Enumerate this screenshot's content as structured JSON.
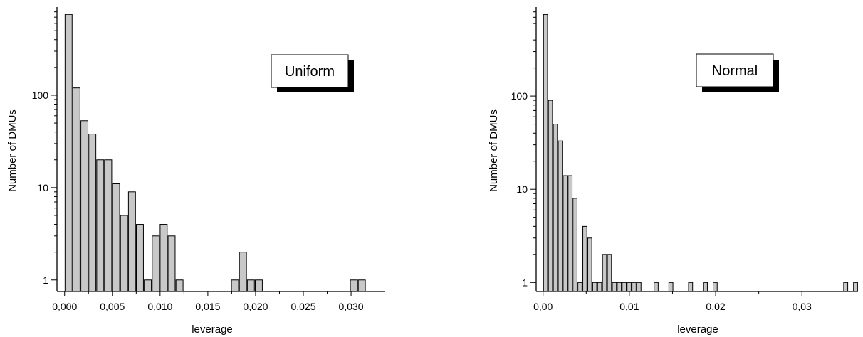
{
  "chart_data": [
    {
      "type": "bar",
      "title": "",
      "xlabel": "leverage",
      "ylabel": "Number of DMUs",
      "y_scale": "log",
      "ylim": [
        0.75,
        900
      ],
      "xlim": [
        -0.0008,
        0.0335
      ],
      "x_ticks": [
        "0,000",
        "0,005",
        "0,010",
        "0,015",
        "0,020",
        "0,025",
        "0,030"
      ],
      "x_tick_values": [
        0.0,
        0.005,
        0.01,
        0.015,
        0.02,
        0.025,
        0.03
      ],
      "y_ticks": [
        "1",
        "10",
        "100"
      ],
      "y_tick_values": [
        1,
        10,
        100
      ],
      "bin_width": 0.00083,
      "x": [
        0.0,
        0.00083,
        0.00166,
        0.00249,
        0.00332,
        0.00415,
        0.00498,
        0.00581,
        0.00664,
        0.00747,
        0.0083,
        0.00913,
        0.00996,
        0.01079,
        0.01162,
        0.01743,
        0.01826,
        0.01909,
        0.01992,
        0.02988,
        0.03071
      ],
      "values": [
        750,
        120,
        53,
        38,
        20,
        20,
        11,
        5,
        9,
        4,
        1,
        3,
        4,
        3,
        1,
        1,
        2,
        1,
        1,
        1,
        1
      ],
      "legend": {
        "label": "Uniform",
        "placement": "top-right"
      }
    },
    {
      "type": "bar",
      "title": "",
      "xlabel": "leverage",
      "ylabel": "Number of DMUs",
      "y_scale": "log",
      "ylim": [
        0.8,
        900
      ],
      "xlim": [
        -0.0008,
        0.0365
      ],
      "x_ticks": [
        "0,00",
        "0,01",
        "0,02",
        "0,03"
      ],
      "x_tick_values": [
        0.0,
        0.01,
        0.02,
        0.03
      ],
      "y_ticks": [
        "1",
        "10",
        "100"
      ],
      "y_tick_values": [
        1,
        10,
        100
      ],
      "bin_width": 0.00057,
      "x": [
        0.0,
        0.00057,
        0.00114,
        0.00171,
        0.00228,
        0.00285,
        0.00342,
        0.00399,
        0.00456,
        0.00513,
        0.0057,
        0.00627,
        0.00684,
        0.00741,
        0.00798,
        0.00855,
        0.00912,
        0.00969,
        0.01026,
        0.01083,
        0.01282,
        0.01453,
        0.01681,
        0.01852,
        0.01966,
        0.03479,
        0.03593
      ],
      "values": [
        750,
        90,
        50,
        33,
        14,
        14,
        8,
        1,
        4,
        3,
        1,
        1,
        2,
        2,
        1,
        1,
        1,
        1,
        1,
        1,
        1,
        1,
        1,
        1,
        1,
        1,
        1
      ],
      "legend": {
        "label": "Normal",
        "placement": "top-right"
      }
    }
  ]
}
